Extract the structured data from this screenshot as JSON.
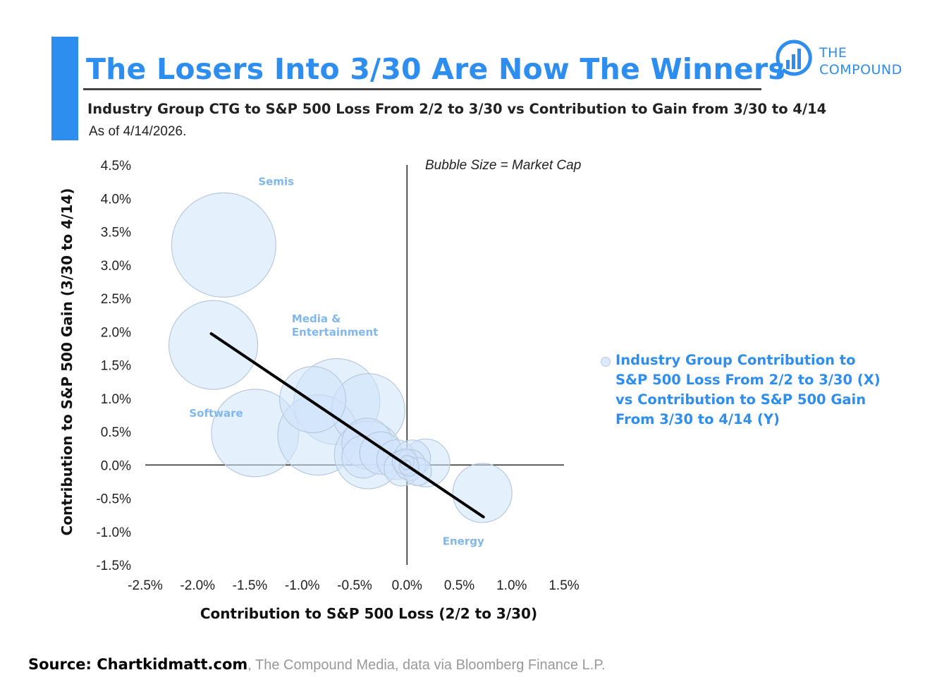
{
  "header": {
    "title": "The Losers Into 3/30 Are Now The Winners",
    "subtitle": "Industry Group CTG to S&P 500 Loss From 2/2 to 3/30 vs Contribution to Gain from 3/30 to 4/14",
    "as_of": "As of 4/14/2026.",
    "logo_line1": "THE",
    "logo_line2": "COMPOUND"
  },
  "colors": {
    "accent": "#2e8ef0",
    "bubble_fill": "#cfe3fb",
    "bubble_stroke": "#b9c9dd",
    "label": "#7fb8f0",
    "trendline": "#000000"
  },
  "legend": {
    "text": "Industry Group Contribution to S&P 500 Loss From 2/2 to 3/30 (X) vs Contribution to S&P 500 Gain From 3/30 to 4/14 (Y)"
  },
  "source": {
    "bold": "Source: Chartkidmatt.com",
    "rest": ", The Compound Media, data via Bloomberg Finance L.P."
  },
  "chart_data": {
    "type": "scatter",
    "title": "The Losers Into 3/30 Are Now The Winners",
    "xlabel": "Contribution to S&P 500 Loss (2/2 to 3/30)",
    "ylabel": "Contribution to S&P 500 Gain (3/30 to 4/14)",
    "xlim": [
      -2.5,
      1.5
    ],
    "ylim": [
      -1.5,
      4.5
    ],
    "xticks": [
      -2.5,
      -2.0,
      -1.5,
      -1.0,
      -0.5,
      0.0,
      0.5,
      1.0,
      1.5
    ],
    "yticks": [
      -1.5,
      -1.0,
      -0.5,
      0.0,
      0.5,
      1.0,
      1.5,
      2.0,
      2.5,
      3.0,
      3.5,
      4.0,
      4.5
    ],
    "xtick_labels": [
      "-2.5%",
      "-2.0%",
      "-1.5%",
      "-1.0%",
      "-0.5%",
      "0.0%",
      "0.5%",
      "1.0%",
      "1.5%"
    ],
    "ytick_labels": [
      "-1.5%",
      "-1.0%",
      "-0.5%",
      "0.0%",
      "0.5%",
      "1.0%",
      "1.5%",
      "2.0%",
      "2.5%",
      "3.0%",
      "3.5%",
      "4.0%",
      "4.5%"
    ],
    "bubble_note": "Bubble Size = Market Cap",
    "series": [
      {
        "name": "Industry Group Contribution to S&P 500 Loss From 2/2 to 3/30 (X) vs Contribution to S&P 500 Gain From 3/30 to 4/14 (Y)",
        "points": [
          {
            "x": -1.75,
            "y": 3.3,
            "size": 74
          },
          {
            "x": -1.85,
            "y": 1.8,
            "size": 63
          },
          {
            "x": -1.45,
            "y": 0.48,
            "size": 62
          },
          {
            "x": -0.85,
            "y": 0.45,
            "size": 57
          },
          {
            "x": -0.67,
            "y": 0.95,
            "size": 61
          },
          {
            "x": -0.37,
            "y": 0.82,
            "size": 52
          },
          {
            "x": -0.9,
            "y": 0.98,
            "size": 47
          },
          {
            "x": -0.37,
            "y": 0.15,
            "size": 48
          },
          {
            "x": 0.72,
            "y": -0.42,
            "size": 42
          },
          {
            "x": -0.38,
            "y": 0.32,
            "size": 36
          },
          {
            "x": -0.42,
            "y": 0.12,
            "size": 30
          },
          {
            "x": -0.25,
            "y": 0.18,
            "size": 30
          },
          {
            "x": 0.18,
            "y": 0.03,
            "size": 34
          },
          {
            "x": -0.1,
            "y": 0.08,
            "size": 28
          },
          {
            "x": 0.05,
            "y": 0.1,
            "size": 26
          },
          {
            "x": -0.05,
            "y": -0.05,
            "size": 25
          },
          {
            "x": 0.03,
            "y": 0.0,
            "size": 22
          },
          {
            "x": 0.1,
            "y": -0.1,
            "size": 20
          },
          {
            "x": -0.02,
            "y": 0.05,
            "size": 18
          },
          {
            "x": 0.02,
            "y": -0.02,
            "size": 14
          },
          {
            "x": 0.0,
            "y": 0.04,
            "size": 10
          },
          {
            "x": -0.01,
            "y": 0.0,
            "size": 7
          },
          {
            "x": 0.01,
            "y": 0.02,
            "size": 4
          }
        ]
      }
    ],
    "annotations": [
      {
        "text": "Semis",
        "x": -1.42,
        "y": 4.2
      },
      {
        "text": "Media &",
        "x": -1.1,
        "y": 2.14
      },
      {
        "text": "Entertainment",
        "x": -1.1,
        "y": 1.94
      },
      {
        "text": "Software",
        "x": -2.08,
        "y": 0.72
      },
      {
        "text": "Energy",
        "x": 0.34,
        "y": -1.2
      }
    ],
    "trendline": {
      "x": [
        -1.87,
        0.73
      ],
      "y": [
        1.97,
        -0.78
      ]
    }
  }
}
